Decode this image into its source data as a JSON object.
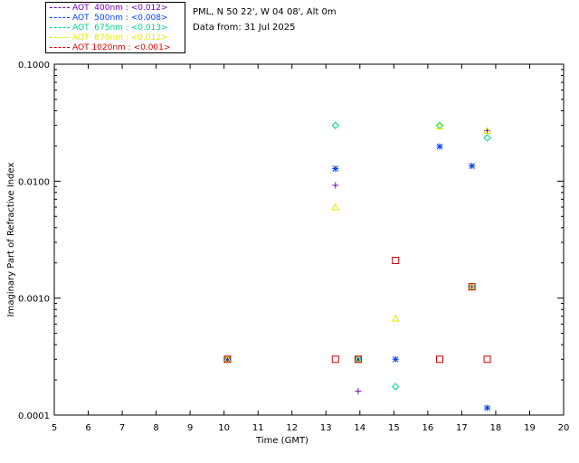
{
  "header": {
    "site": "PML, N 50 22', W 04 08', Alt 0m",
    "date": "Data from: 31 Jul 2025"
  },
  "legend": [
    {
      "label": "AOT  400nm : <0.012>",
      "color": "#7a00b0"
    },
    {
      "label": "AOT  500nm : <0.008>",
      "color": "#0040ff"
    },
    {
      "label": "AOT  675nm : <0.013>",
      "color": "#00d08a"
    },
    {
      "label": "AOT  870nm : <0.012>",
      "color": "#e8e800"
    },
    {
      "label": "AOT 1020nm : <0.001>",
      "color": "#d00000"
    }
  ],
  "chart_data": {
    "type": "scatter",
    "xlabel": "Time (GMT)",
    "ylabel": "Imaginary Part of Refractive Index",
    "xlim": [
      5,
      20
    ],
    "ylim": [
      0.0001,
      0.1
    ],
    "yscale": "log",
    "x_ticks": [
      "5",
      "6",
      "7",
      "8",
      "9",
      "10",
      "11",
      "12",
      "13",
      "14",
      "15",
      "16",
      "17",
      "18",
      "19",
      "20"
    ],
    "y_ticks": [
      {
        "value": 0.1,
        "label": "0.1000"
      },
      {
        "value": 0.01,
        "label": "0.0100"
      },
      {
        "value": 0.001,
        "label": "0.0010"
      },
      {
        "value": 0.0001,
        "label": "0.0001"
      }
    ],
    "series": [
      {
        "name": "AOT  400nm",
        "marker": "plus",
        "color": "#7a00b0",
        "points": [
          [
            10.1,
            0.0003
          ],
          [
            13.28,
            0.0092
          ],
          [
            13.95,
            0.00016
          ],
          [
            17.3,
            0.00125
          ],
          [
            17.75,
            0.027
          ]
        ]
      },
      {
        "name": "AOT  500nm",
        "marker": "asterisk",
        "color": "#0040ff",
        "points": [
          [
            10.1,
            0.0003
          ],
          [
            13.28,
            0.0128
          ],
          [
            13.95,
            0.0003
          ],
          [
            15.05,
            0.0003
          ],
          [
            16.35,
            0.0198
          ],
          [
            17.3,
            0.0135
          ],
          [
            17.75,
            0.000115
          ]
        ]
      },
      {
        "name": "AOT  675nm",
        "marker": "diamond",
        "color": "#00d08a",
        "points": [
          [
            10.1,
            0.0003
          ],
          [
            13.28,
            0.03
          ],
          [
            13.95,
            0.0003
          ],
          [
            15.05,
            0.000175
          ],
          [
            16.35,
            0.03
          ],
          [
            17.3,
            0.00125
          ],
          [
            17.75,
            0.0235
          ]
        ]
      },
      {
        "name": "AOT  870nm",
        "marker": "triangle",
        "color": "#e8e800",
        "points": [
          [
            10.1,
            0.0003
          ],
          [
            13.28,
            0.006
          ],
          [
            13.95,
            0.0003
          ],
          [
            15.05,
            0.00067
          ],
          [
            16.35,
            0.0295
          ],
          [
            17.3,
            0.00125
          ],
          [
            17.75,
            0.027
          ]
        ]
      },
      {
        "name": "AOT 1020nm",
        "marker": "square",
        "color": "#d00000",
        "points": [
          [
            10.1,
            0.0003
          ],
          [
            13.28,
            0.0003
          ],
          [
            13.95,
            0.0003
          ],
          [
            15.05,
            0.0021
          ],
          [
            16.35,
            0.0003
          ],
          [
            17.3,
            0.00125
          ],
          [
            17.75,
            0.0003
          ]
        ]
      }
    ]
  }
}
